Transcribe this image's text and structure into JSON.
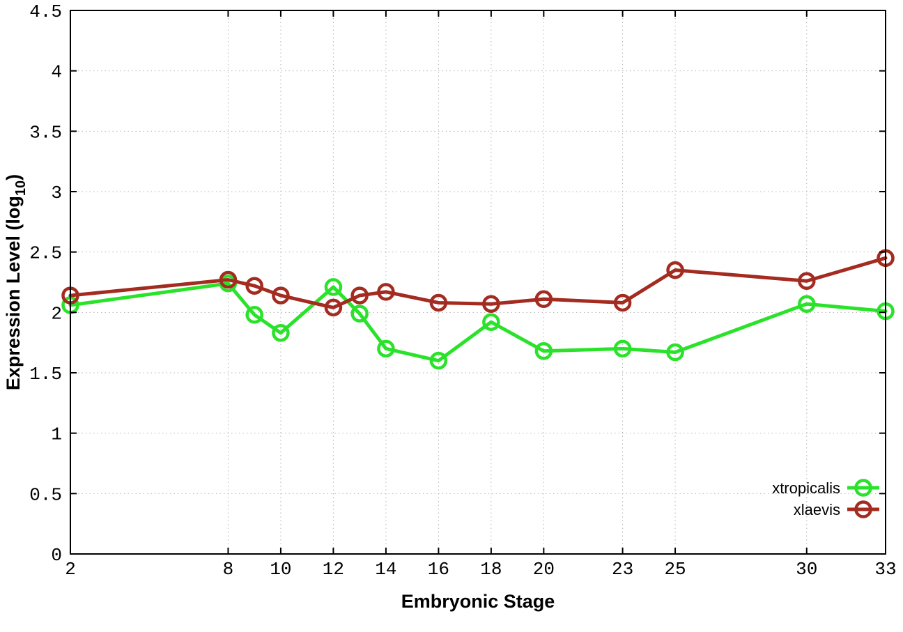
{
  "chart_data": {
    "type": "line",
    "title": "",
    "xlabel": "Embryonic Stage",
    "ylabel": "Expression Level (log10)",
    "ylabel_parts": {
      "prefix": "Expression Level (log",
      "subscript": "10",
      "suffix": ")"
    },
    "xlim": [
      2,
      33
    ],
    "ylim": [
      0,
      4.5
    ],
    "grid": true,
    "grid_style": "dotted",
    "x_ticks": [
      2,
      8,
      10,
      12,
      14,
      16,
      18,
      20,
      23,
      25,
      30,
      33
    ],
    "x_tick_labels": [
      "2",
      "8",
      "10",
      "12",
      "14",
      "16",
      "18",
      "20",
      "23",
      "25",
      "30",
      "33"
    ],
    "y_ticks": [
      0,
      0.5,
      1,
      1.5,
      2,
      2.5,
      3,
      3.5,
      4,
      4.5
    ],
    "y_tick_labels": [
      "0",
      "0.5",
      "1",
      "1.5",
      "2",
      "2.5",
      "3",
      "3.5",
      "4",
      "4.5"
    ],
    "x": [
      2,
      8,
      9,
      10,
      12,
      13,
      14,
      16,
      18,
      20,
      23,
      25,
      30,
      33
    ],
    "series": [
      {
        "name": "xtropicalis",
        "color": "#2ae22a",
        "marker": "open-circle",
        "values": [
          2.06,
          2.24,
          1.98,
          1.83,
          2.21,
          1.99,
          1.7,
          1.6,
          1.92,
          1.68,
          1.7,
          1.67,
          2.07,
          2.01
        ]
      },
      {
        "name": "xlaevis",
        "color": "#a32b20",
        "marker": "open-circle",
        "values": [
          2.14,
          2.27,
          2.22,
          2.14,
          2.04,
          2.14,
          2.17,
          2.08,
          2.07,
          2.11,
          2.08,
          2.35,
          2.26,
          2.45
        ]
      }
    ],
    "legend_position": "bottom-right",
    "colors": {
      "background": "#ffffff",
      "axis": "#000000",
      "grid": "#b5b5b5"
    }
  }
}
